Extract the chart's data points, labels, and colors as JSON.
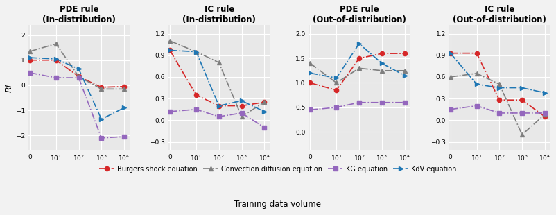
{
  "x_ticks": [
    0,
    10,
    100,
    1000,
    10000
  ],
  "subplots": [
    {
      "title": "PDE rule\n(In-distribution)",
      "ylim": [
        -2.6,
        2.4
      ],
      "yticks": [
        -2,
        -1,
        0,
        1,
        2
      ],
      "series": {
        "burgers": [
          1.0,
          1.0,
          0.35,
          -0.08,
          -0.05
        ],
        "convection": [
          1.35,
          1.65,
          0.35,
          -0.15,
          -0.15
        ],
        "kg": [
          0.5,
          0.3,
          0.3,
          -2.1,
          -2.05
        ],
        "kdv": [
          1.1,
          1.05,
          0.65,
          -1.35,
          -0.9
        ]
      }
    },
    {
      "title": "IC rule\n(In-distribution)",
      "ylim": [
        -0.42,
        1.32
      ],
      "yticks": [
        -0.3,
        0.0,
        0.3,
        0.6,
        0.9,
        1.2
      ],
      "series": {
        "burgers": [
          0.97,
          0.35,
          0.2,
          0.2,
          0.25
        ],
        "convection": [
          1.1,
          0.95,
          0.8,
          0.05,
          0.25
        ],
        "kg": [
          0.12,
          0.15,
          0.05,
          0.1,
          -0.1
        ],
        "kdv": [
          0.97,
          0.95,
          0.2,
          0.27,
          0.12
        ]
      }
    },
    {
      "title": "PDE rule\n(Out-of-distribution)",
      "ylim": [
        -0.38,
        2.18
      ],
      "yticks": [
        0.0,
        0.5,
        1.0,
        1.5,
        2.0
      ],
      "series": {
        "burgers": [
          1.0,
          0.85,
          1.5,
          1.6,
          1.6
        ],
        "convection": [
          1.4,
          1.0,
          1.3,
          1.25,
          1.25
        ],
        "kg": [
          0.45,
          0.5,
          0.6,
          0.6,
          0.6
        ],
        "kdv": [
          1.2,
          1.1,
          1.8,
          1.4,
          1.15
        ]
      }
    },
    {
      "title": "IC rule\n(Out-of-distribution)",
      "ylim": [
        -0.42,
        1.32
      ],
      "yticks": [
        -0.3,
        0.0,
        0.3,
        0.6,
        0.9,
        1.2
      ],
      "series": {
        "burgers": [
          0.93,
          0.93,
          0.28,
          0.28,
          0.05
        ],
        "convection": [
          0.6,
          0.65,
          0.5,
          -0.2,
          0.08
        ],
        "kg": [
          0.15,
          0.2,
          0.1,
          0.1,
          0.1
        ],
        "kdv": [
          0.93,
          0.5,
          0.45,
          0.45,
          0.38
        ]
      }
    }
  ],
  "colors": {
    "burgers": "#d62728",
    "convection": "#7f7f7f",
    "kg": "#9467bd",
    "kdv": "#1f77b4"
  },
  "markers": {
    "burgers": "o",
    "convection": "^",
    "kg": "s",
    "kdv": ">"
  },
  "legend_labels": {
    "burgers": "Burgers shock equation",
    "convection": "Convection diffusion equation",
    "kg": "KG equation",
    "kdv": "KdV equation"
  },
  "ylabel": "RI",
  "xlabel": "Training data volume",
  "bg_color": "#e8e8e8",
  "fig_bg": "#f2f2f2"
}
